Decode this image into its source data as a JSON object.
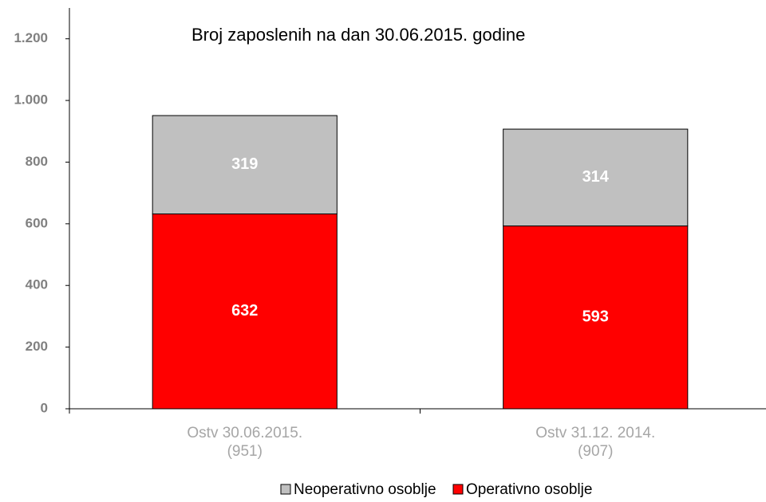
{
  "chart_data": {
    "type": "stacked_bar",
    "title": "Broj zaposlenih na dan 30.06.2015. godine",
    "categories": [
      "Ostv 30.06.2015.\n(951)",
      "Ostv  31.12. 2014.\n(907)"
    ],
    "series": [
      {
        "name": "Operativno osoblje",
        "color": "#ff0000",
        "values": [
          632,
          593
        ]
      },
      {
        "name": "Neoperativno osoblje",
        "color": "#c0c0c0",
        "values": [
          319,
          314
        ]
      }
    ],
    "ylim": [
      0,
      1300
    ],
    "yticks": [
      0,
      200,
      400,
      600,
      800,
      {
        "value": 1000,
        "label": "1.000"
      },
      {
        "value": 1200,
        "label": "1.200"
      }
    ]
  }
}
